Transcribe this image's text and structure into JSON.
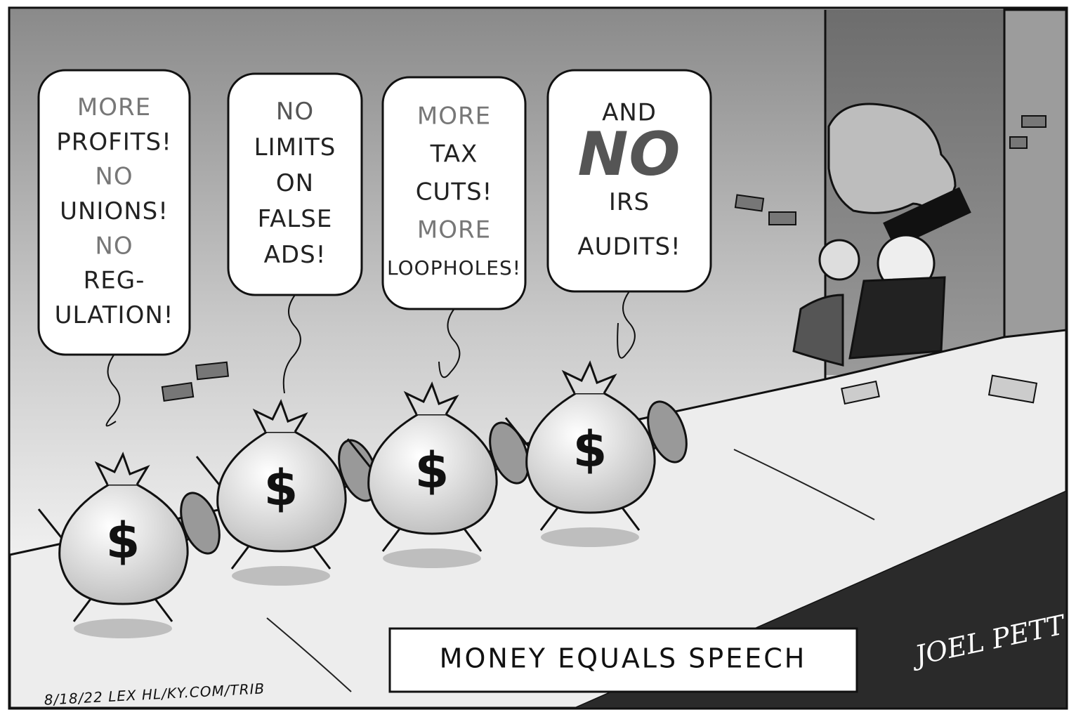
{
  "balloons": [
    {
      "lines": [
        {
          "text": "MORE",
          "color": "#777"
        },
        {
          "text": "PROFITS!",
          "color": "#222"
        },
        {
          "text": "NO",
          "color": "#777"
        },
        {
          "text": "UNIONS!",
          "color": "#222"
        },
        {
          "text": "NO",
          "color": "#777"
        },
        {
          "text": "REG-",
          "color": "#222"
        },
        {
          "text": "ULATION!",
          "color": "#222"
        }
      ]
    },
    {
      "lines": [
        {
          "text": "NO",
          "color": "#555"
        },
        {
          "text": "LIMITS",
          "color": "#222"
        },
        {
          "text": "ON",
          "color": "#222"
        },
        {
          "text": "FALSE",
          "color": "#222"
        },
        {
          "text": "ADS!",
          "color": "#222"
        }
      ]
    },
    {
      "lines": [
        {
          "text": "MORE",
          "color": "#777"
        },
        {
          "text": "TAX",
          "color": "#222"
        },
        {
          "text": "CUTS!",
          "color": "#222"
        },
        {
          "text": "MORE",
          "color": "#777"
        },
        {
          "text": "LOOPHOLES!",
          "color": "#222"
        }
      ]
    },
    {
      "lines": [
        {
          "text": "AND",
          "color": "#222"
        },
        {
          "text": "NO",
          "color": "#555"
        },
        {
          "text": "IRS",
          "color": "#222"
        },
        {
          "text": "AUDITS!",
          "color": "#222"
        }
      ]
    }
  ],
  "bag_symbol": "$",
  "caption": "MONEY EQUALS SPEECH",
  "signature": "JOEL PETT",
  "credit": "8/18/22 LEX HL/KY.COM/TRIB"
}
